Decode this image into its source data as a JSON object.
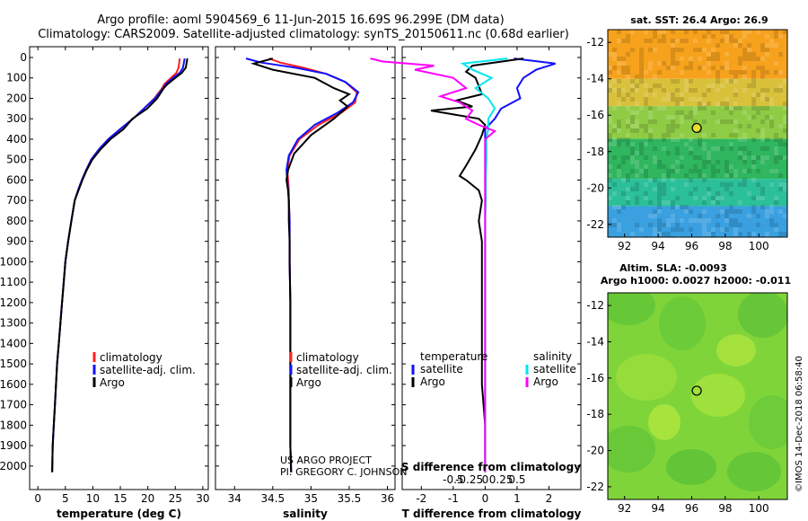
{
  "header": {
    "title_line1": "Argo profile: aoml 5904569_6 11-Jun-2015 16.69S 96.299E (DM data)",
    "title_line2": "Climatology: CARS2009. Satellite-adjusted climatology: synTS_20150611.nc (0.68d earlier)"
  },
  "colors": {
    "climatology": "#ff2020",
    "satellite": "#1010ff",
    "argo": "#000000",
    "salinity_sat": "#00e5ee",
    "salinity_argo": "#ff00ff"
  },
  "credits": {
    "project": "US ARGO PROJECT",
    "pi": "PI: GREGORY C. JOHNSON",
    "stamp": "©IMOS 14-Dec-2018 06:58:40"
  },
  "chart_data": [
    {
      "id": "temperature",
      "type": "line",
      "xlabel": "temperature (deg C)",
      "ylabel": "",
      "xlim": [
        -1.5,
        31
      ],
      "xticks": [
        0,
        5,
        10,
        15,
        20,
        25,
        30
      ],
      "xticklabels": [
        "0",
        "5",
        "10",
        "15",
        "20",
        "25",
        "30"
      ],
      "ylim": [
        2080,
        0
      ],
      "yticks": [
        0,
        100,
        200,
        300,
        400,
        500,
        600,
        700,
        800,
        900,
        1000,
        1100,
        1200,
        1300,
        1400,
        1500,
        1600,
        1700,
        1800,
        1900,
        2000
      ],
      "yticklabels": [
        "0",
        "100",
        "200",
        "300",
        "400",
        "500",
        "600",
        "700",
        "800",
        "900",
        "1000",
        "1100",
        "1200",
        "1300",
        "1400",
        "1500",
        "1600",
        "1700",
        "1800",
        "1900",
        "2000"
      ],
      "legend": [
        "climatology",
        "satellite-adj. clim.",
        "Argo"
      ],
      "series": [
        {
          "name": "climatology",
          "color_key": "climatology",
          "x": [
            25.8,
            25.6,
            25.2,
            24.2,
            23,
            22.6,
            21.2,
            19.3,
            17.3,
            15,
            12.8,
            11.1,
            9.7,
            8.8,
            8,
            7.3,
            6.7,
            6.1,
            5.5,
            5,
            4.7,
            4.4,
            4.1,
            3.8,
            3.5,
            3.3,
            3.1,
            2.9,
            2.7,
            2.6
          ],
          "y": [
            5,
            50,
            75,
            100,
            130,
            150,
            200,
            250,
            300,
            350,
            400,
            450,
            500,
            550,
            600,
            650,
            700,
            800,
            900,
            1000,
            1100,
            1200,
            1300,
            1400,
            1500,
            1600,
            1700,
            1800,
            1900,
            2030
          ]
        },
        {
          "name": "satellite-adj. clim.",
          "color_key": "satellite",
          "x": [
            26.7,
            26.4,
            25.8,
            24.6,
            23.3,
            22.8,
            21.3,
            19.3,
            17.3,
            15,
            12.8,
            11.1,
            9.7,
            8.8,
            8,
            7.3,
            6.7,
            6.1,
            5.5,
            5,
            4.7,
            4.4,
            4.1,
            3.8,
            3.5,
            3.3,
            3.1,
            2.9,
            2.7,
            2.6
          ],
          "y": [
            5,
            50,
            75,
            100,
            130,
            150,
            200,
            250,
            300,
            350,
            400,
            450,
            500,
            550,
            600,
            650,
            700,
            800,
            900,
            1000,
            1100,
            1200,
            1300,
            1400,
            1500,
            1600,
            1700,
            1800,
            1900,
            2030
          ]
        },
        {
          "name": "Argo",
          "color_key": "argo",
          "x": [
            27.2,
            26.9,
            26.2,
            25,
            23.6,
            22.9,
            21.7,
            19.9,
            17.2,
            15.6,
            13.2,
            11.4,
            9.9,
            8.9,
            8.1,
            7.4,
            6.7,
            6.1,
            5.5,
            5,
            4.7,
            4.4,
            4.1,
            3.8,
            3.5,
            3.3,
            3.1,
            2.9,
            2.7,
            2.6
          ],
          "y": [
            5,
            50,
            75,
            100,
            130,
            150,
            200,
            250,
            300,
            350,
            400,
            450,
            500,
            550,
            600,
            650,
            700,
            800,
            900,
            1000,
            1100,
            1200,
            1300,
            1400,
            1500,
            1600,
            1700,
            1800,
            1900,
            2030
          ]
        }
      ]
    },
    {
      "id": "salinity",
      "type": "line",
      "xlabel": "salinity",
      "xlim": [
        33.75,
        36.1
      ],
      "xticks": [
        34,
        34.5,
        35,
        35.5,
        36
      ],
      "xticklabels": [
        "34",
        "34.5",
        "35",
        "35.5",
        "36"
      ],
      "ylim": [
        2080,
        0
      ],
      "legend": [
        "climatology",
        "satellite-adj. clim.",
        "Argo"
      ],
      "series": [
        {
          "name": "climatology",
          "color_key": "climatology",
          "x": [
            34.45,
            34.6,
            34.9,
            35.2,
            35.45,
            35.6,
            35.58,
            35.4,
            35.1,
            34.85,
            34.72,
            34.69,
            34.7,
            34.71,
            34.71,
            34.72,
            34.72,
            34.72,
            34.73,
            34.73,
            34.73,
            34.73,
            34.73,
            34.73,
            34.73,
            34.74
          ],
          "y": [
            5,
            25,
            50,
            80,
            120,
            170,
            220,
            270,
            330,
            400,
            480,
            550,
            600,
            650,
            700,
            800,
            900,
            1000,
            1200,
            1400,
            1500,
            1600,
            1700,
            1800,
            1900,
            2030
          ]
        },
        {
          "name": "satellite-adj. clim.",
          "color_key": "satellite",
          "x": [
            34.15,
            34.35,
            34.8,
            35.2,
            35.45,
            35.62,
            35.55,
            35.35,
            35.05,
            34.83,
            34.71,
            34.68,
            34.69,
            34.7,
            34.71,
            34.72,
            34.72,
            34.72,
            34.73,
            34.73,
            34.73,
            34.73,
            34.73,
            34.73,
            34.73,
            34.74
          ],
          "y": [
            5,
            25,
            50,
            80,
            120,
            170,
            220,
            270,
            330,
            400,
            480,
            550,
            600,
            650,
            700,
            800,
            900,
            1000,
            1200,
            1400,
            1500,
            1600,
            1700,
            1800,
            1900,
            2030
          ]
        },
        {
          "name": "Argo",
          "color_key": "argo",
          "x": [
            34.5,
            34.25,
            34.5,
            35.05,
            35.3,
            35.5,
            35.38,
            35.48,
            35.3,
            35,
            34.78,
            34.7,
            34.68,
            34.7,
            34.71,
            34.71,
            34.72,
            34.72,
            34.73,
            34.73,
            34.73,
            34.73,
            34.73,
            34.73,
            34.73,
            34.74
          ],
          "y": [
            5,
            30,
            60,
            100,
            150,
            180,
            210,
            240,
            300,
            380,
            470,
            550,
            600,
            650,
            700,
            800,
            900,
            1000,
            1200,
            1400,
            1500,
            1600,
            1700,
            1800,
            1900,
            2030
          ]
        }
      ]
    },
    {
      "id": "difference",
      "type": "line",
      "xlabel": "T difference from climatology",
      "title_top": "S difference from climatology",
      "xlim": [
        -2.6,
        3
      ],
      "xticks": [
        -2,
        -1,
        0,
        1,
        2
      ],
      "xticklabels": [
        "-2",
        "-1",
        "0",
        "1",
        "2"
      ],
      "s_xticks": [
        -0.5,
        -0.25,
        0,
        0.25,
        0.5
      ],
      "s_xticklabels": [
        "-0.5",
        "-0.25",
        "0",
        "0.25",
        "0.5"
      ],
      "ylim": [
        2080,
        0
      ],
      "legend_temperature": [
        "temperature",
        "satellite",
        "Argo"
      ],
      "legend_salinity": [
        "salinity",
        "satellite",
        "Argo"
      ],
      "series": [
        {
          "name": "T satellite",
          "color_key": "satellite",
          "x": [
            0.9,
            2.2,
            1.6,
            1.2,
            1,
            1.1,
            0.5,
            0.3,
            0,
            0,
            0,
            0,
            0,
            0,
            0,
            0,
            0,
            0,
            0,
            0,
            0,
            0
          ],
          "y": [
            5,
            30,
            60,
            100,
            150,
            200,
            250,
            300,
            350,
            400,
            500,
            600,
            700,
            800,
            900,
            1000,
            1200,
            1400,
            1600,
            1800,
            1900,
            2030
          ]
        },
        {
          "name": "T Argo",
          "color_key": "argo",
          "x": [
            1.2,
            -0.4,
            -0.6,
            -0.3,
            -0.2,
            -0.1,
            -0.9,
            -0.4,
            -1.7,
            -0.2,
            0,
            -0.1,
            -0.3,
            -0.6,
            -0.8,
            -0.6,
            -0.2,
            -0.1,
            -0.2,
            -0.1,
            -0.1,
            -0.1,
            -0.1,
            -0.1,
            0,
            0,
            0
          ],
          "y": [
            5,
            40,
            70,
            100,
            140,
            180,
            210,
            240,
            260,
            300,
            330,
            380,
            450,
            530,
            580,
            600,
            650,
            700,
            800,
            900,
            1000,
            1200,
            1400,
            1600,
            1800,
            1900,
            2030
          ]
        },
        {
          "name": "S satellite",
          "color_key": "salinity_sat",
          "x": [
            0.35,
            -0.35,
            -0.2,
            0.1,
            -0.15,
            0.05,
            0.15,
            0.05,
            0.05,
            0.02,
            0.02,
            0.01,
            0.01,
            0,
            0,
            0,
            0,
            0,
            0,
            0,
            0
          ],
          "y": [
            5,
            30,
            60,
            100,
            150,
            200,
            250,
            300,
            350,
            400,
            500,
            600,
            700,
            800,
            900,
            1000,
            1200,
            1400,
            1600,
            1800,
            2030
          ]
        },
        {
          "name": "S Argo",
          "color_key": "salinity_argo",
          "x": [
            -1.8,
            -1.6,
            -0.8,
            -1.1,
            -0.5,
            -0.3,
            -0.7,
            -0.4,
            -0.2,
            -0.3,
            -0.1,
            0.15,
            0,
            0,
            0,
            0,
            0,
            0,
            0
          ],
          "y": [
            5,
            20,
            40,
            60,
            100,
            150,
            190,
            220,
            260,
            300,
            330,
            360,
            400,
            500,
            700,
            1000,
            1400,
            1800,
            2030
          ]
        }
      ]
    },
    {
      "id": "sst-map",
      "type": "heatmap",
      "title": "sat. SST: 26.4 Argo: 26.9",
      "xlim": [
        91,
        101.7
      ],
      "ylim": [
        -22.7,
        -11.3
      ],
      "xticks": [
        92,
        94,
        96,
        98,
        100
      ],
      "xticklabels": [
        "92",
        "94",
        "96",
        "98",
        "100"
      ],
      "yticks": [
        -12,
        -14,
        -16,
        -18,
        -20,
        -22
      ],
      "yticklabels": [
        "-12",
        "-14",
        "-16",
        "-18",
        "-20",
        "-22"
      ],
      "marker": {
        "lon": 96.3,
        "lat": -16.7
      },
      "bands": [
        {
          "lat_top": -11.3,
          "lat_bottom": -14.0,
          "color": "#f7a21d"
        },
        {
          "lat_top": -14.0,
          "lat_bottom": -15.5,
          "color": "#d9c13b"
        },
        {
          "lat_top": -15.5,
          "lat_bottom": -17.3,
          "color": "#8fcc45"
        },
        {
          "lat_top": -17.3,
          "lat_bottom": -19.5,
          "color": "#2fb65f"
        },
        {
          "lat_top": -19.5,
          "lat_bottom": -21.0,
          "color": "#2bbf9a"
        },
        {
          "lat_top": -21.0,
          "lat_bottom": -22.7,
          "color": "#3aa0e0"
        }
      ]
    },
    {
      "id": "sla-map",
      "type": "heatmap",
      "title1": "Altim. SLA: -0.0093",
      "title2": "Argo h1000: 0.0027 h2000: -0.011",
      "xlim": [
        91,
        101.7
      ],
      "ylim": [
        -22.7,
        -11.3
      ],
      "xticks": [
        92,
        94,
        96,
        98,
        100
      ],
      "xticklabels": [
        "92",
        "94",
        "96",
        "98",
        "100"
      ],
      "yticks": [
        -12,
        -14,
        -16,
        -18,
        -20,
        -22
      ],
      "yticklabels": [
        "-12",
        "-14",
        "-16",
        "-18",
        "-20",
        "-22"
      ],
      "marker": {
        "lon": 96.3,
        "lat": -16.7
      },
      "base_color": "#7fd43a"
    }
  ]
}
